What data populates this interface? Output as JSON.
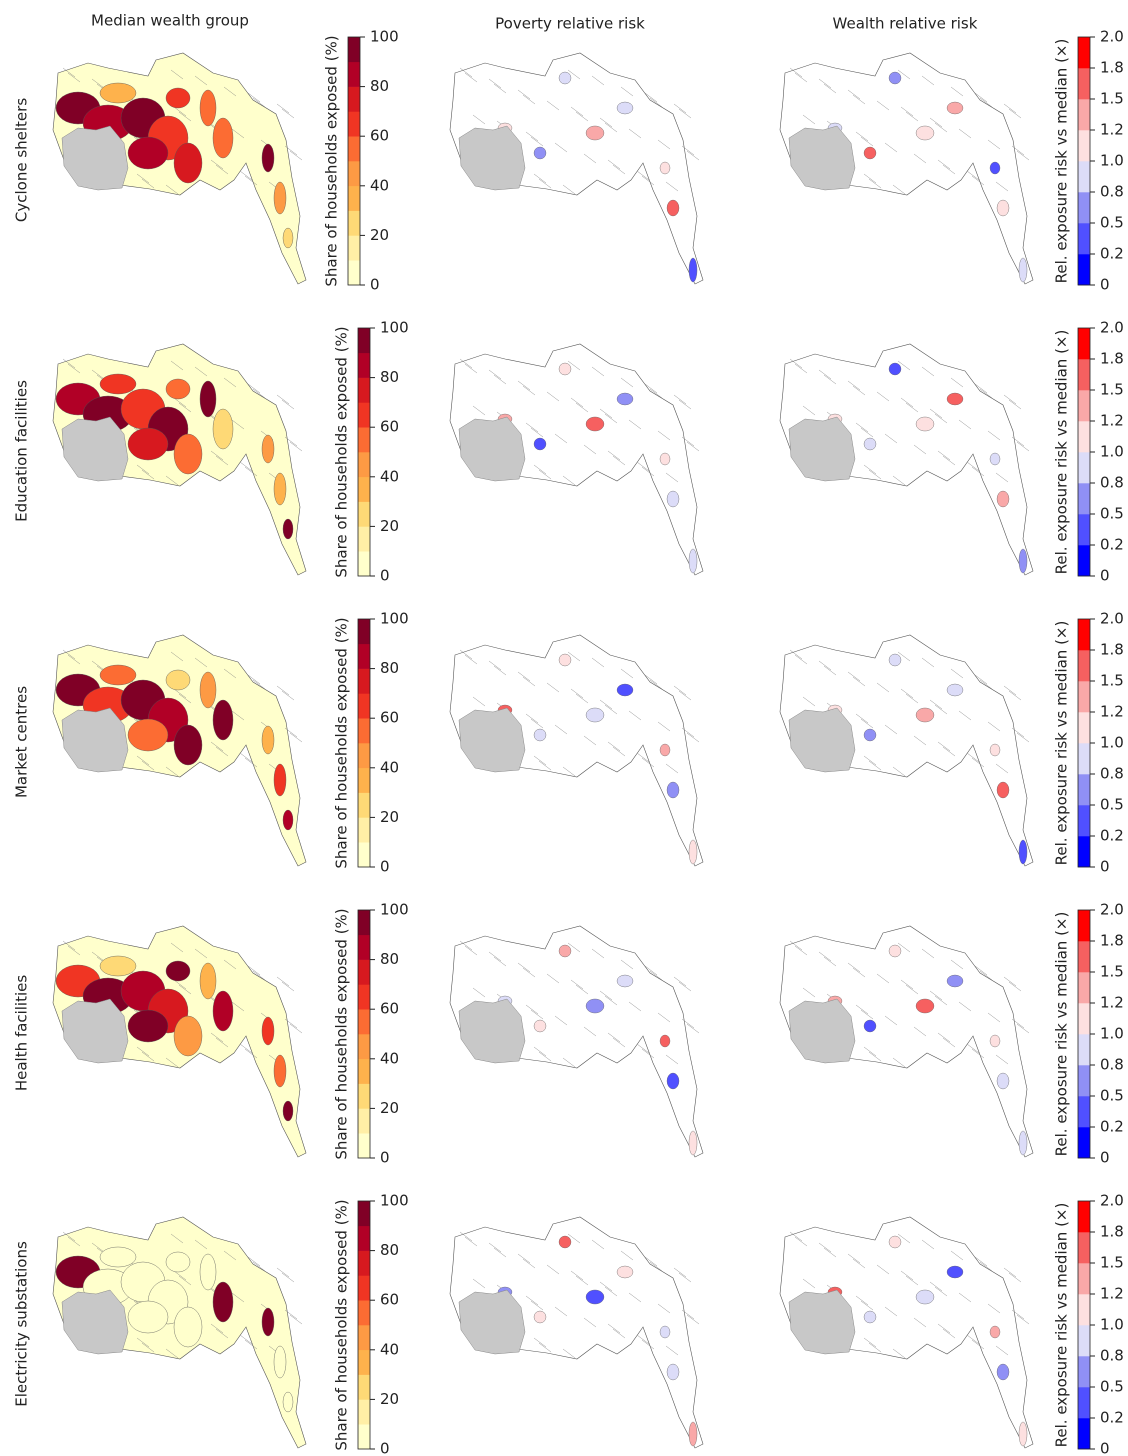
{
  "columns": [
    "Median wealth group",
    "Poverty relative risk",
    "Wealth relative risk"
  ],
  "rows": [
    "Cyclone shelters",
    "Education facilities",
    "Market centres",
    "Health facilities",
    "Electricity substations"
  ],
  "share_colorbar": {
    "label": "Share of households exposed (%)",
    "colors": [
      "#ffffcc",
      "#ffefa6",
      "#fed976",
      "#feb24c",
      "#fd9a44",
      "#fc6c33",
      "#f03523",
      "#d7191f",
      "#b10026",
      "#800026"
    ],
    "lim": [
      0,
      100
    ],
    "ticks": [
      0,
      20,
      40,
      60,
      80,
      100
    ]
  },
  "risk_colorbar": {
    "label": "Rel. exposure risk vs median (×)",
    "colors": [
      "#0000ff",
      "#5050ff",
      "#9090f5",
      "#dcdcf8",
      "#fde0e0",
      "#f9a8a8",
      "#f66060",
      "#ff0000"
    ],
    "ticks": [
      0,
      0.2,
      0.5,
      0.8,
      {
        "value": 1.0,
        "label": "1.0"
      },
      1.2,
      1.5,
      1.8,
      {
        "value": 2.0,
        "label": "2.0"
      }
    ]
  }
}
